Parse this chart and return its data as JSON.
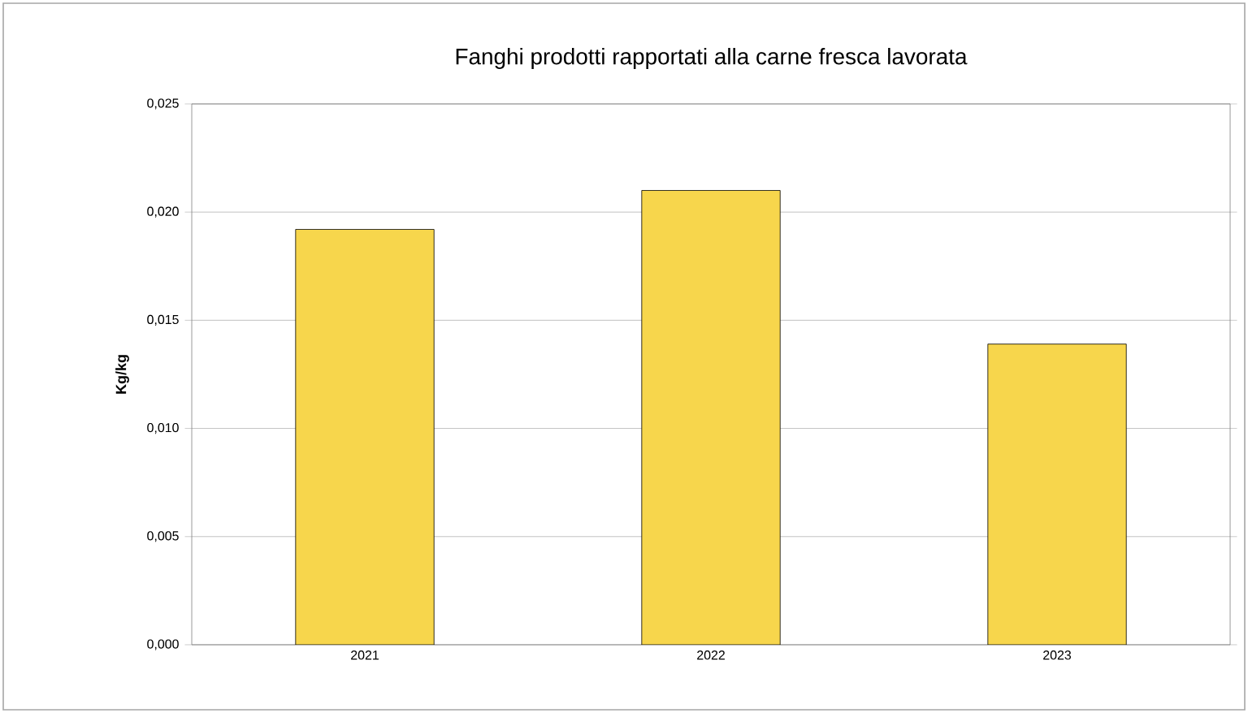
{
  "chart_data": {
    "type": "bar",
    "title": "Fanghi prodotti rapportati alla carne fresca lavorata",
    "ylabel": "Kg/kg",
    "categories": [
      "2021",
      "2022",
      "2023"
    ],
    "values": [
      0.0192,
      0.021,
      0.0139
    ],
    "color": "#f7d64c",
    "ylim": [
      0,
      0.025
    ],
    "yticks": [
      {
        "value": 0,
        "label": "0,000"
      },
      {
        "value": 0.005,
        "label": "0,005"
      },
      {
        "value": 0.01,
        "label": "0,010"
      },
      {
        "value": 0.015,
        "label": "0,015"
      },
      {
        "value": 0.02,
        "label": "0,020"
      },
      {
        "value": 0.025,
        "label": "0,025"
      }
    ],
    "grid": "y"
  }
}
